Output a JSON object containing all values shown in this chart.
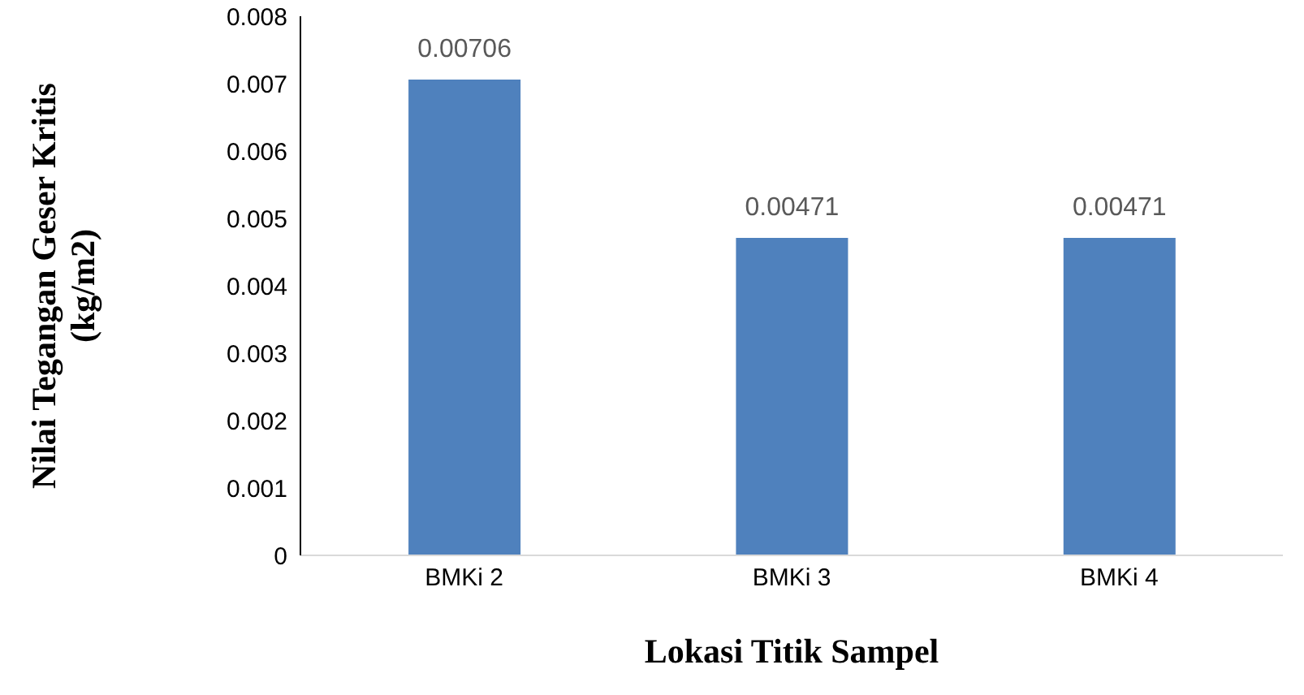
{
  "chart_data": {
    "type": "bar",
    "xlabel": "Lokasi Titik Sampel",
    "ylabel": "Nilai Tegangan Geser Kritis\n(kg/m2)",
    "categories": [
      "BMKi 2",
      "BMKi 3",
      "BMKi 4"
    ],
    "values": [
      0.00706,
      0.00471,
      0.00471
    ],
    "color": "#4f81bd",
    "ylim": [
      0,
      0.008
    ],
    "yticks": [
      0,
      0.001,
      0.002,
      0.003,
      0.004,
      0.005,
      0.006,
      0.007,
      0.008
    ],
    "grid": false,
    "data_labels": true
  }
}
